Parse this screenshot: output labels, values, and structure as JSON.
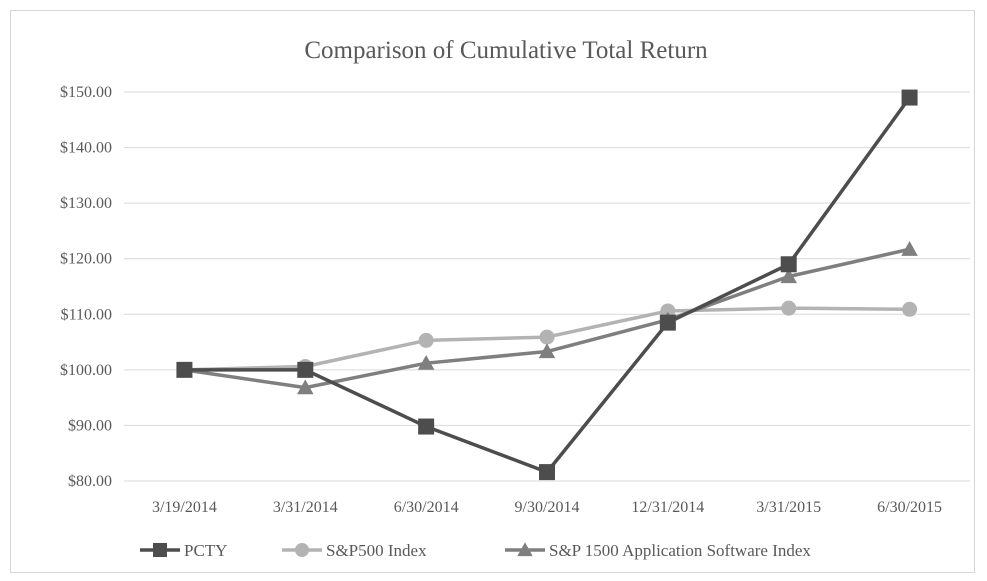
{
  "chart_data": {
    "type": "line",
    "title": "Comparison of Cumulative Total Return",
    "xlabel": "",
    "ylabel": "",
    "categories": [
      "3/19/2014",
      "3/31/2014",
      "6/30/2014",
      "9/30/2014",
      "12/31/2014",
      "3/31/2015",
      "6/30/2015"
    ],
    "ylim": [
      80,
      150
    ],
    "yticks": [
      "$80.00",
      "$90.00",
      "$100.00",
      "$110.00",
      "$120.00",
      "$130.00",
      "$140.00",
      "$150.00"
    ],
    "grid": true,
    "legend_position": "bottom",
    "series": [
      {
        "name": "PCTY",
        "values": [
          100,
          100,
          89.8,
          81.6,
          108.5,
          119.0,
          149.0
        ],
        "color": "#4d4d4d",
        "marker": "square"
      },
      {
        "name": "S&P500 Index",
        "values": [
          100,
          100.6,
          105.3,
          105.9,
          110.6,
          111.1,
          110.9
        ],
        "color": "#b3b3b3",
        "marker": "circle"
      },
      {
        "name": "S&P 1500 Application Software Index",
        "values": [
          100,
          96.8,
          101.2,
          103.3,
          109.0,
          116.8,
          121.7
        ],
        "color": "#7f7f7f",
        "marker": "triangle"
      }
    ]
  }
}
